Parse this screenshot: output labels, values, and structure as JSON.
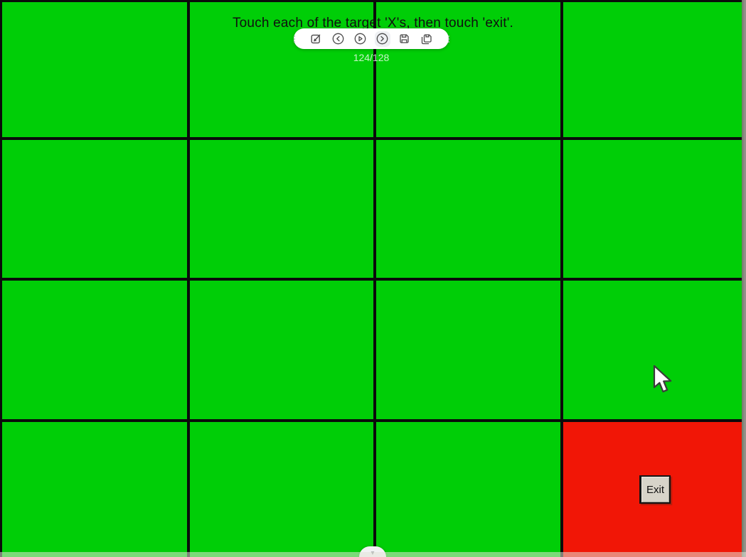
{
  "screen": {
    "instruction": "Touch each of the target 'X's, then touch 'exit'."
  },
  "grid": {
    "rows": 4,
    "cols": 4,
    "red_cell_index": 15
  },
  "toolbar": {
    "counter": "124/128",
    "icons": [
      {
        "name": "drag-handle-icon"
      },
      {
        "name": "edit-icon"
      },
      {
        "name": "back-icon"
      },
      {
        "name": "play-icon"
      },
      {
        "name": "forward-icon",
        "active": true
      },
      {
        "name": "save-icon"
      },
      {
        "name": "save-copy-icon"
      },
      {
        "name": "more-icon"
      }
    ]
  },
  "exit_button": {
    "label": "Exit"
  },
  "bottom_tab": {
    "arrow": "▼"
  },
  "colors": {
    "cell_green": "#00CE07",
    "cell_red": "#F11606",
    "grid_line": "#0B0B0B",
    "edge_strip": "#8D8D85",
    "toolbar_bg": "#FFFFFF",
    "exit_face": "#D7D4C9"
  }
}
